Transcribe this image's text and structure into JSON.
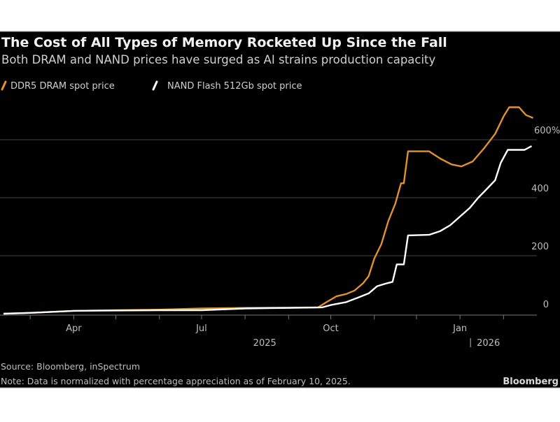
{
  "chart_data": {
    "type": "line",
    "title": "The Cost of All Types of Memory Rocketed Up Since the Fall",
    "subtitle": "Both DRAM and NAND prices have surged as AI strains production capacity",
    "source": "Source: Bloomberg, inSpectrum",
    "note": "Note: Data is normalized with percentage appreciation as of February 10, 2025.",
    "logo": "Bloomberg",
    "xlim": [
      "2025-02-10",
      "2026-02-24"
    ],
    "ylim": [
      0,
      720
    ],
    "y_ticks": [
      {
        "value": 0,
        "label": "0"
      },
      {
        "value": 200,
        "label": "200"
      },
      {
        "value": 400,
        "label": "400"
      },
      {
        "value": 600,
        "label": "600%"
      }
    ],
    "x_ticks": [
      {
        "date": "2025-04-01",
        "label": "Apr"
      },
      {
        "date": "2025-07-01",
        "label": "Jul"
      },
      {
        "date": "2025-10-01",
        "label": "Oct"
      },
      {
        "date": "2026-01-01",
        "label": "Jan"
      }
    ],
    "minor_ticks": [
      "2025-03-01",
      "2025-04-01",
      "2025-05-01",
      "2025-06-01",
      "2025-07-01",
      "2025-08-01",
      "2025-09-01",
      "2025-10-01",
      "2025-11-01",
      "2025-12-01",
      "2026-01-01",
      "2026-02-01"
    ],
    "year_labels": [
      {
        "date": "2025-08-15",
        "label": "2025"
      },
      {
        "date": "2026-01-01",
        "label": "2026",
        "separator": true
      }
    ],
    "grid": true,
    "legend_position": "top-left",
    "series": [
      {
        "name": "DDR5 DRAM spot price",
        "color": "#e0922f",
        "points": [
          [
            "2025-02-10",
            0
          ],
          [
            "2025-03-01",
            3
          ],
          [
            "2025-04-01",
            10
          ],
          [
            "2025-05-01",
            12
          ],
          [
            "2025-06-01",
            14
          ],
          [
            "2025-07-01",
            18
          ],
          [
            "2025-08-01",
            20
          ],
          [
            "2025-09-01",
            21
          ],
          [
            "2025-09-22",
            22
          ],
          [
            "2025-09-28",
            40
          ],
          [
            "2025-10-05",
            60
          ],
          [
            "2025-10-12",
            68
          ],
          [
            "2025-10-18",
            80
          ],
          [
            "2025-10-24",
            105
          ],
          [
            "2025-10-28",
            130
          ],
          [
            "2025-11-01",
            190
          ],
          [
            "2025-11-06",
            240
          ],
          [
            "2025-11-11",
            320
          ],
          [
            "2025-11-16",
            380
          ],
          [
            "2025-11-20",
            450
          ],
          [
            "2025-11-22",
            450
          ],
          [
            "2025-11-25",
            560
          ],
          [
            "2025-12-10",
            560
          ],
          [
            "2025-12-18",
            535
          ],
          [
            "2025-12-26",
            515
          ],
          [
            "2026-01-02",
            508
          ],
          [
            "2026-01-10",
            525
          ],
          [
            "2026-01-18",
            570
          ],
          [
            "2026-01-26",
            620
          ],
          [
            "2026-02-01",
            680
          ],
          [
            "2026-02-05",
            712
          ],
          [
            "2026-02-12",
            712
          ],
          [
            "2026-02-17",
            685
          ],
          [
            "2026-02-22",
            675
          ]
        ]
      },
      {
        "name": "NAND Flash 512Gb spot price",
        "color": "#ffffff",
        "points": [
          [
            "2025-02-10",
            0
          ],
          [
            "2025-03-01",
            3
          ],
          [
            "2025-04-01",
            10
          ],
          [
            "2025-05-01",
            11
          ],
          [
            "2025-06-01",
            12
          ],
          [
            "2025-07-01",
            12
          ],
          [
            "2025-08-01",
            18
          ],
          [
            "2025-09-01",
            20
          ],
          [
            "2025-09-25",
            22
          ],
          [
            "2025-10-01",
            30
          ],
          [
            "2025-10-12",
            40
          ],
          [
            "2025-10-20",
            55
          ],
          [
            "2025-10-28",
            70
          ],
          [
            "2025-11-03",
            95
          ],
          [
            "2025-11-10",
            105
          ],
          [
            "2025-11-14",
            110
          ],
          [
            "2025-11-17",
            170
          ],
          [
            "2025-11-22",
            170
          ],
          [
            "2025-11-25",
            270
          ],
          [
            "2025-12-10",
            272
          ],
          [
            "2025-12-18",
            285
          ],
          [
            "2025-12-25",
            305
          ],
          [
            "2026-01-01",
            335
          ],
          [
            "2026-01-08",
            365
          ],
          [
            "2026-01-14",
            400
          ],
          [
            "2026-01-20",
            430
          ],
          [
            "2026-01-26",
            460
          ],
          [
            "2026-01-30",
            520
          ],
          [
            "2026-02-04",
            565
          ],
          [
            "2026-02-16",
            565
          ],
          [
            "2026-02-21",
            578
          ]
        ]
      }
    ]
  }
}
